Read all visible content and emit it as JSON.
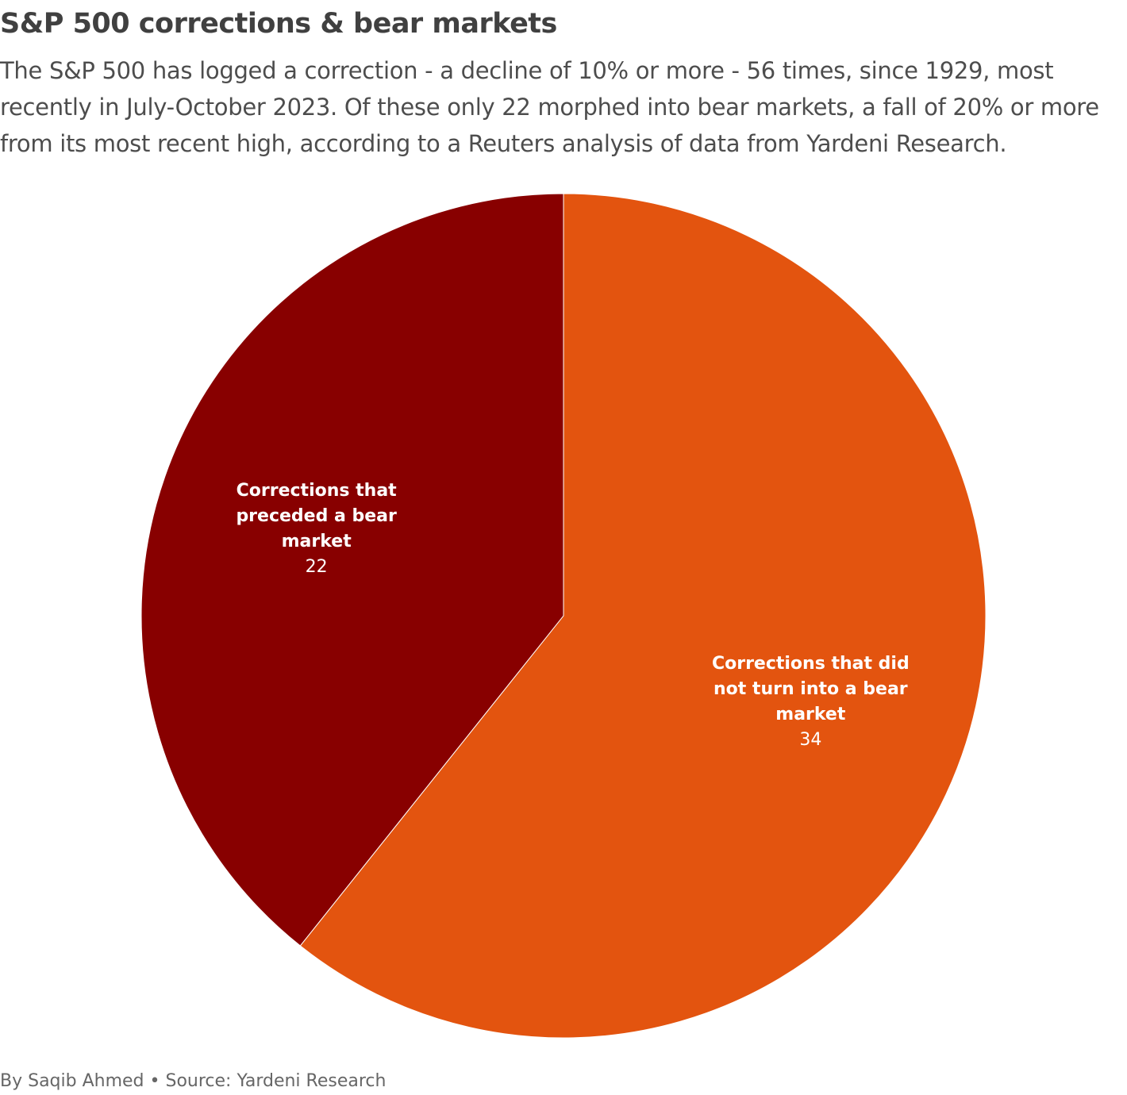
{
  "header": {
    "title": "S&P 500 corrections & bear markets",
    "subtitle": "The S&P 500 has logged a correction - a decline of 10% or more - 56 times, since 1929, most recently in July-October 2023. Of these only 22 morphed into bear markets, a fall of 20% or more from its most recent high, according to a Reuters analysis of data from Yardeni Research."
  },
  "footer": {
    "credit": "By Saqib Ahmed • Source: Yardeni Research"
  },
  "chart_data": {
    "type": "pie",
    "title": "S&P 500 corrections & bear markets",
    "start": "top",
    "direction": "clockwise",
    "total": 56,
    "slices": [
      {
        "name": "Corrections that did not turn into a bear market",
        "label_lines": [
          "Corrections that did",
          "not turn into a bear",
          "market"
        ],
        "value": 34,
        "color": "#e3540f"
      },
      {
        "name": "Corrections that preceded a bear market",
        "label_lines": [
          "Corrections that",
          "preceded a bear",
          "market"
        ],
        "value": 22,
        "color": "#880000"
      }
    ]
  }
}
